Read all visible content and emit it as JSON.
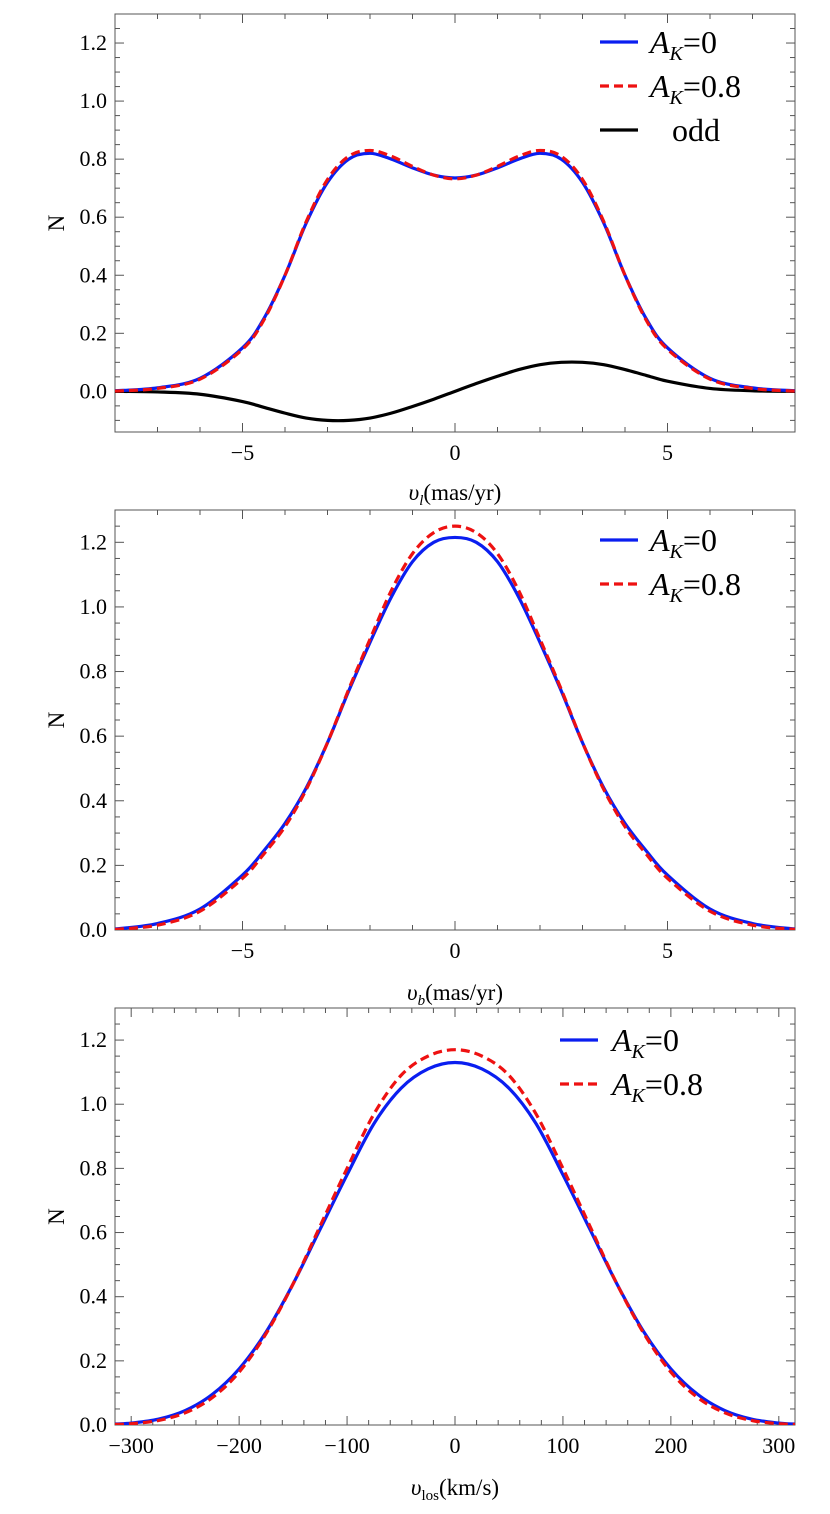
{
  "colors": {
    "blue": "#0a1ef0",
    "red": "#ee1111",
    "black": "#000000"
  },
  "chart_data": [
    {
      "type": "line",
      "panel": "proper motion l",
      "xlabel": "υ",
      "xlabel_sub": "l",
      "xlabel_unit": "(mas/yr)",
      "ylabel": "N",
      "xlim": [
        -8,
        8
      ],
      "ylim": [
        -0.14,
        1.3
      ],
      "xticks": [
        -5,
        0,
        5
      ],
      "xtick_labels": [
        "−5",
        "0",
        "5"
      ],
      "yticks": [
        0.0,
        0.2,
        0.4,
        0.6,
        0.8,
        1.0,
        1.2
      ],
      "ytick_labels": [
        "0.0",
        "0.2",
        "0.4",
        "0.6",
        "0.8",
        "1.0",
        "1.2"
      ],
      "legend_position": "top-right",
      "x": [
        -8,
        -7,
        -6,
        -5,
        -4.5,
        -4,
        -3.5,
        -3,
        -2.5,
        -2,
        -1.5,
        -1,
        -0.5,
        0,
        0.5,
        1,
        1.5,
        2,
        2.5,
        3,
        3.5,
        4,
        4.5,
        5,
        6,
        7,
        8
      ],
      "series": [
        {
          "name": "A",
          "name_sub": "K",
          "name_value": "=0",
          "color": "blue",
          "dash": "solid",
          "values": [
            0.002,
            0.012,
            0.045,
            0.15,
            0.25,
            0.4,
            0.58,
            0.72,
            0.8,
            0.82,
            0.8,
            0.77,
            0.745,
            0.735,
            0.745,
            0.77,
            0.8,
            0.82,
            0.8,
            0.72,
            0.58,
            0.4,
            0.25,
            0.15,
            0.045,
            0.012,
            0.002
          ]
        },
        {
          "name": "A",
          "name_sub": "K",
          "name_value": "=0.8",
          "color": "red",
          "dash": "dashed",
          "values": [
            0.001,
            0.01,
            0.042,
            0.145,
            0.245,
            0.4,
            0.585,
            0.73,
            0.81,
            0.83,
            0.81,
            0.775,
            0.745,
            0.732,
            0.745,
            0.775,
            0.81,
            0.83,
            0.81,
            0.73,
            0.585,
            0.4,
            0.245,
            0.145,
            0.042,
            0.01,
            0.001
          ]
        },
        {
          "name": "odd",
          "name_sub": "",
          "name_value": "",
          "color": "black",
          "dash": "solid",
          "values": [
            0.0,
            -0.002,
            -0.01,
            -0.035,
            -0.055,
            -0.075,
            -0.092,
            -0.1,
            -0.1,
            -0.092,
            -0.075,
            -0.052,
            -0.027,
            0.0,
            0.027,
            0.052,
            0.075,
            0.092,
            0.1,
            0.1,
            0.092,
            0.075,
            0.055,
            0.035,
            0.01,
            0.002,
            0.0
          ]
        }
      ]
    },
    {
      "type": "line",
      "panel": "proper motion b",
      "xlabel": "υ",
      "xlabel_sub": "b",
      "xlabel_unit": "(mas/yr)",
      "ylabel": "N",
      "xlim": [
        -8,
        8
      ],
      "ylim": [
        0.0,
        1.3
      ],
      "xticks": [
        -5,
        0,
        5
      ],
      "xtick_labels": [
        "−5",
        "0",
        "5"
      ],
      "yticks": [
        0.0,
        0.2,
        0.4,
        0.6,
        0.8,
        1.0,
        1.2
      ],
      "ytick_labels": [
        "0.0",
        "0.2",
        "0.4",
        "0.6",
        "0.8",
        "1.0",
        "1.2"
      ],
      "legend_position": "top-right",
      "x": [
        -8,
        -7,
        -6,
        -5,
        -4.5,
        -4,
        -3.5,
        -3,
        -2.5,
        -2,
        -1.5,
        -1,
        -0.5,
        0,
        0.5,
        1,
        1.5,
        2,
        2.5,
        3,
        3.5,
        4,
        4.5,
        5,
        6,
        7,
        8
      ],
      "series": [
        {
          "name": "A",
          "name_sub": "K",
          "name_value": "=0",
          "color": "blue",
          "dash": "solid",
          "values": [
            0.003,
            0.02,
            0.065,
            0.17,
            0.245,
            0.33,
            0.44,
            0.58,
            0.74,
            0.89,
            1.03,
            1.14,
            1.2,
            1.215,
            1.2,
            1.14,
            1.03,
            0.89,
            0.74,
            0.58,
            0.44,
            0.33,
            0.245,
            0.17,
            0.065,
            0.02,
            0.003
          ]
        },
        {
          "name": "A",
          "name_sub": "K",
          "name_value": "=0.8",
          "color": "red",
          "dash": "dashed",
          "values": [
            0.002,
            0.015,
            0.058,
            0.16,
            0.235,
            0.32,
            0.435,
            0.58,
            0.745,
            0.9,
            1.05,
            1.165,
            1.23,
            1.25,
            1.23,
            1.165,
            1.05,
            0.9,
            0.745,
            0.58,
            0.435,
            0.32,
            0.235,
            0.16,
            0.058,
            0.015,
            0.002
          ]
        }
      ]
    },
    {
      "type": "line",
      "panel": "line of sight",
      "xlabel": "υ",
      "xlabel_sub": "los",
      "xlabel_unit": "(km/s)",
      "ylabel": "N",
      "xlim": [
        -315,
        315
      ],
      "ylim": [
        0.0,
        1.3
      ],
      "xticks": [
        -300,
        -200,
        -100,
        0,
        100,
        200,
        300
      ],
      "xtick_labels": [
        "−300",
        "−200",
        "−100",
        "0",
        "100",
        "200",
        "300"
      ],
      "yticks": [
        0.0,
        0.2,
        0.4,
        0.6,
        0.8,
        1.0,
        1.2
      ],
      "ytick_labels": [
        "0.0",
        "0.2",
        "0.4",
        "0.6",
        "0.8",
        "1.0",
        "1.2"
      ],
      "legend_position": "top-right",
      "x": [
        -315,
        -300,
        -275,
        -250,
        -225,
        -200,
        -175,
        -150,
        -125,
        -100,
        -75,
        -50,
        -25,
        0,
        25,
        50,
        75,
        100,
        125,
        150,
        175,
        200,
        225,
        250,
        275,
        300,
        315
      ],
      "series": [
        {
          "name": "A",
          "name_sub": "K",
          "name_value": "=0",
          "color": "blue",
          "dash": "solid",
          "values": [
            0.003,
            0.006,
            0.018,
            0.045,
            0.095,
            0.175,
            0.29,
            0.44,
            0.61,
            0.78,
            0.94,
            1.05,
            1.11,
            1.13,
            1.11,
            1.05,
            0.94,
            0.78,
            0.61,
            0.44,
            0.29,
            0.175,
            0.095,
            0.045,
            0.018,
            0.006,
            0.003
          ]
        },
        {
          "name": "A",
          "name_sub": "K",
          "name_value": "=0.8",
          "color": "red",
          "dash": "dashed",
          "values": [
            0.002,
            0.004,
            0.014,
            0.038,
            0.085,
            0.165,
            0.285,
            0.44,
            0.62,
            0.8,
            0.97,
            1.09,
            1.15,
            1.17,
            1.15,
            1.09,
            0.97,
            0.8,
            0.62,
            0.44,
            0.285,
            0.165,
            0.085,
            0.038,
            0.014,
            0.004,
            0.002
          ]
        }
      ]
    }
  ]
}
